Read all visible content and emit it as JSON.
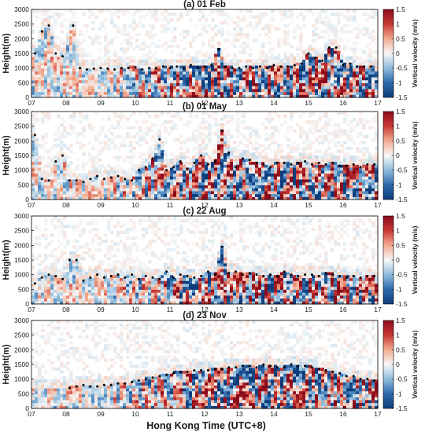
{
  "figure": {
    "xlabel": "Hong Kong Time (UTC+8)",
    "ylabel": "Height(m)",
    "colorbar_label": "Vertical velocity (m/s)"
  },
  "colorscale": {
    "name": "red-white-blue diverging",
    "min": -1.5,
    "max": 1.5,
    "low_color": "#0d3c7a",
    "mid_color": "#f7f7f7",
    "high_color": "#8b0a1a"
  },
  "chart_data": [
    {
      "type": "heatmap",
      "title": "(a) 01 Feb",
      "xlabel": "",
      "ylabel": "Height(m)",
      "x_ticks": [
        "07",
        "08",
        "09",
        "10",
        "11",
        "12",
        "13",
        "14",
        "15",
        "16",
        "17"
      ],
      "xlim": [
        7,
        17
      ],
      "ylim": [
        0,
        3000
      ],
      "y_ticks": [
        0,
        500,
        1000,
        1500,
        2000,
        2500,
        3000
      ],
      "colorbar": {
        "label": "Vertical velocity (m/s)",
        "min": -1.5,
        "max": 1.5,
        "ticks": [
          -1.5,
          -1,
          -0.5,
          0,
          0.5,
          1,
          1.5
        ]
      },
      "boundary_layer_height": {
        "x": [
          7.1,
          7.3,
          7.5,
          7.7,
          7.9,
          8.2,
          8.4,
          8.6,
          8.8,
          9.0,
          9.2,
          9.4,
          9.6,
          9.8,
          10.0,
          10.2,
          10.4,
          10.6,
          10.8,
          11.0,
          11.2,
          11.4,
          11.6,
          11.8,
          12.0,
          12.2,
          12.4,
          12.6,
          12.8,
          13.0,
          13.2,
          13.4,
          13.6,
          13.8,
          14.0,
          14.2,
          14.4,
          14.6,
          14.8,
          15.0,
          15.2,
          15.4,
          15.6,
          15.8,
          16.0,
          16.2,
          16.4,
          16.6,
          16.8
        ],
        "y": [
          1500,
          2250,
          2450,
          1500,
          1400,
          2450,
          1000,
          950,
          980,
          1000,
          980,
          950,
          1000,
          1000,
          1020,
          950,
          1000,
          1000,
          1050,
          1000,
          1050,
          1000,
          1100,
          1000,
          1050,
          1100,
          1650,
          1050,
          1000,
          1000,
          1050,
          1000,
          1050,
          1000,
          1100,
          1050,
          1050,
          1100,
          1150,
          1500,
          1350,
          1250,
          1700,
          1700,
          1100,
          1150,
          1050,
          1050,
          1050
        ]
      }
    },
    {
      "type": "heatmap",
      "title": "(b) 01 May",
      "xlabel": "",
      "ylabel": "Height(m)",
      "x_ticks": [
        "07",
        "08",
        "09",
        "10",
        "11",
        "12",
        "13",
        "14",
        "15",
        "16",
        "17"
      ],
      "xlim": [
        7,
        17
      ],
      "ylim": [
        0,
        3000
      ],
      "y_ticks": [
        0,
        500,
        1000,
        1500,
        2000,
        2500,
        3000
      ],
      "colorbar": {
        "label": "Vertical velocity (m/s)",
        "min": -1.5,
        "max": 1.5,
        "ticks": [
          -1.5,
          -1,
          -0.5,
          0,
          0.5,
          1,
          1.5
        ]
      },
      "boundary_layer_height": {
        "x": [
          7.1,
          7.3,
          7.5,
          7.7,
          7.9,
          8.1,
          8.3,
          8.5,
          8.7,
          8.9,
          9.1,
          9.3,
          9.5,
          9.7,
          9.9,
          10.1,
          10.3,
          10.5,
          10.7,
          10.9,
          11.1,
          11.3,
          11.5,
          11.7,
          11.9,
          12.1,
          12.3,
          12.5,
          12.7,
          12.9,
          13.1,
          13.3,
          13.5,
          13.7,
          13.9,
          14.1,
          14.3,
          14.5,
          14.7,
          14.9,
          15.1,
          15.3,
          15.5,
          15.7,
          15.9,
          16.1,
          16.3,
          16.5,
          16.7,
          16.9
        ],
        "y": [
          2200,
          700,
          650,
          1300,
          1500,
          650,
          650,
          600,
          700,
          800,
          700,
          750,
          800,
          700,
          650,
          1000,
          1100,
          1400,
          2050,
          1000,
          1100,
          1300,
          1050,
          1250,
          1500,
          1200,
          1300,
          2350,
          1600,
          1100,
          1400,
          1350,
          1250,
          1200,
          1100,
          1250,
          1250,
          1200,
          1250,
          1300,
          1200,
          1250,
          1200,
          1250,
          1150,
          1150,
          1200,
          1100,
          1200,
          1200
        ]
      }
    },
    {
      "type": "heatmap",
      "title": "(c) 22 Aug",
      "xlabel": "",
      "ylabel": "Height(m)",
      "x_ticks": [
        "07",
        "08",
        "09",
        "10",
        "11",
        "12",
        "13",
        "14",
        "15",
        "16",
        "17"
      ],
      "xlim": [
        7,
        17
      ],
      "ylim": [
        0,
        3000
      ],
      "y_ticks": [
        0,
        500,
        1000,
        1500,
        2000,
        2500,
        3000
      ],
      "colorbar": {
        "label": "Vertical velocity (m/s)",
        "min": -1.5,
        "max": 1.5,
        "ticks": [
          -1.5,
          -1,
          -0.5,
          0,
          0.5,
          1,
          1.5
        ]
      },
      "boundary_layer_height": {
        "x": [
          7.1,
          7.3,
          7.5,
          7.7,
          7.9,
          8.1,
          8.3,
          8.5,
          8.7,
          8.9,
          9.1,
          9.3,
          9.5,
          9.7,
          9.9,
          10.1,
          10.3,
          10.5,
          10.7,
          10.9,
          11.1,
          11.3,
          11.5,
          11.7,
          11.9,
          12.1,
          12.3,
          12.5,
          12.7,
          12.9,
          13.1,
          13.3,
          13.5,
          13.7,
          13.9,
          14.1,
          14.3,
          14.5,
          14.7,
          14.9,
          15.1,
          15.3,
          15.5,
          15.7,
          15.9,
          16.1,
          16.3,
          16.5,
          16.7,
          16.9
        ],
        "y": [
          700,
          900,
          1000,
          950,
          850,
          1500,
          1500,
          800,
          900,
          1000,
          900,
          950,
          1000,
          900,
          1000,
          850,
          950,
          900,
          850,
          1100,
          900,
          1000,
          950,
          900,
          950,
          1100,
          1000,
          1950,
          1050,
          1100,
          1000,
          1050,
          1000,
          950,
          1000,
          950,
          1100,
          1000,
          950,
          1000,
          1000,
          950,
          1050,
          1000,
          950,
          900,
          950,
          900,
          950,
          950
        ]
      }
    },
    {
      "type": "heatmap",
      "title": "(d) 23 Nov",
      "xlabel": "Hong Kong Time (UTC+8)",
      "ylabel": "Height(m)",
      "x_ticks": [
        "07",
        "08",
        "09",
        "10",
        "11",
        "12",
        "13",
        "14",
        "15",
        "16",
        "17"
      ],
      "xlim": [
        7,
        17
      ],
      "ylim": [
        0,
        3000
      ],
      "y_ticks": [
        0,
        500,
        1000,
        1500,
        2000,
        2500,
        3000
      ],
      "colorbar": {
        "label": "Vertical velocity (m/s)",
        "min": -1.5,
        "max": 1.5,
        "ticks": [
          -1.5,
          -1,
          -0.5,
          0,
          0.5,
          1,
          1.5
        ]
      },
      "boundary_layer_height": {
        "x": [
          8.1,
          8.3,
          8.5,
          8.7,
          8.9,
          9.1,
          9.3,
          9.5,
          9.7,
          9.9,
          10.1,
          10.3,
          10.5,
          10.7,
          10.9,
          11.1,
          11.3,
          11.5,
          11.7,
          11.9,
          12.1,
          12.3,
          12.5,
          12.7,
          12.9,
          13.1,
          13.3,
          13.5,
          13.7,
          13.9,
          14.1,
          14.3,
          14.5,
          14.7,
          14.9,
          15.1,
          15.3,
          15.5,
          15.7,
          15.9,
          16.1,
          16.3,
          16.5,
          16.7,
          16.9
        ],
        "y": [
          700,
          750,
          800,
          750,
          750,
          800,
          800,
          850,
          850,
          900,
          950,
          1000,
          1050,
          1100,
          1150,
          1200,
          1250,
          1250,
          1300,
          1300,
          1300,
          1350,
          1350,
          1400,
          1400,
          1450,
          1450,
          1400,
          1500,
          1450,
          1400,
          1400,
          1500,
          1450,
          1450,
          1400,
          1350,
          1300,
          1250,
          1200,
          1100,
          1100,
          1000,
          1000,
          950
        ]
      }
    }
  ]
}
